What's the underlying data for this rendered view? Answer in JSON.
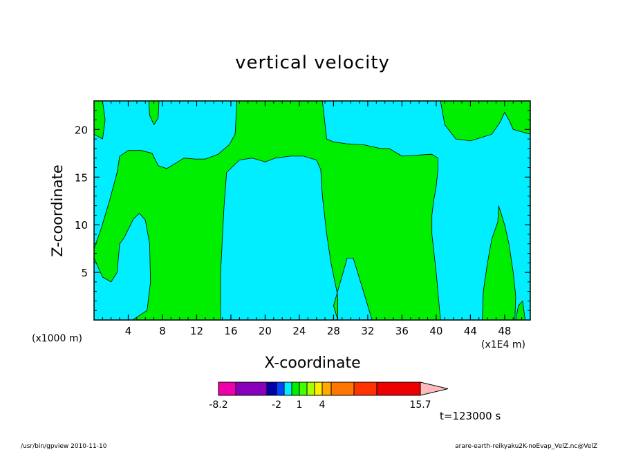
{
  "chart_data": {
    "type": "heatmap",
    "title": "vertical velocity",
    "xlabel": "X-coordinate",
    "ylabel": "Z-coordinate",
    "x_unit_left": "(x1000 m)",
    "x_unit_right": "(x1E4 m)",
    "xlim": [
      0,
      51
    ],
    "ylim": [
      0,
      23
    ],
    "x_ticks": [
      4,
      8,
      12,
      16,
      20,
      24,
      28,
      32,
      36,
      40,
      44,
      48
    ],
    "y_ticks": [
      5,
      10,
      15,
      20
    ],
    "background_color": "#00eeff",
    "region_color": "#00ee00",
    "regions": [
      {
        "points": [
          [
            0,
            7.5
          ],
          [
            0.8,
            9.5
          ],
          [
            1.8,
            12.5
          ],
          [
            2.7,
            15.5
          ],
          [
            3.0,
            17.2
          ],
          [
            4.0,
            17.8
          ],
          [
            5.5,
            17.8
          ],
          [
            6.8,
            17.5
          ],
          [
            7.5,
            16.2
          ],
          [
            8.5,
            15.9
          ],
          [
            9.8,
            16.6
          ],
          [
            10.5,
            17.0
          ],
          [
            11.8,
            16.9
          ],
          [
            13,
            16.9
          ],
          [
            14.5,
            17.4
          ],
          [
            15.8,
            18.4
          ],
          [
            16.5,
            19.5
          ],
          [
            16.7,
            23
          ],
          [
            26.7,
            23
          ],
          [
            27.2,
            19.0
          ],
          [
            28.0,
            18.7
          ],
          [
            29.5,
            18.5
          ],
          [
            31.5,
            18.4
          ],
          [
            33.5,
            18.0
          ],
          [
            34.5,
            18.0
          ],
          [
            36.0,
            17.2
          ],
          [
            37.5,
            17.3
          ],
          [
            39.5,
            17.4
          ],
          [
            40.2,
            17.0
          ],
          [
            40.2,
            15.8
          ],
          [
            40.0,
            14.0
          ],
          [
            39.7,
            12.5
          ],
          [
            39.5,
            11.0
          ],
          [
            39.5,
            9.0
          ],
          [
            40.0,
            5.0
          ],
          [
            40.3,
            2.0
          ],
          [
            40.5,
            0
          ],
          [
            32.5,
            0
          ],
          [
            31.5,
            3.0
          ],
          [
            30.3,
            6.5
          ],
          [
            29.6,
            6.5
          ],
          [
            28.8,
            4.0
          ],
          [
            28.0,
            1.5
          ],
          [
            28.5,
            0
          ],
          [
            28.5,
            2.5
          ],
          [
            27.7,
            6.0
          ],
          [
            27.2,
            9.0
          ],
          [
            26.7,
            13.0
          ],
          [
            26.5,
            15.8
          ],
          [
            26.0,
            16.8
          ],
          [
            24.5,
            17.2
          ],
          [
            23.0,
            17.2
          ],
          [
            21.2,
            17.0
          ],
          [
            20.0,
            16.6
          ],
          [
            18.5,
            17.0
          ],
          [
            17.0,
            16.8
          ],
          [
            15.5,
            15.5
          ],
          [
            15.2,
            12.0
          ],
          [
            14.8,
            5.0
          ],
          [
            14.8,
            0
          ],
          [
            4.5,
            0
          ],
          [
            6.2,
            1.0
          ],
          [
            6.6,
            4.0
          ],
          [
            6.5,
            8.0
          ],
          [
            6.0,
            10.5
          ],
          [
            5.3,
            11.2
          ],
          [
            4.6,
            10.6
          ],
          [
            4.0,
            9.5
          ],
          [
            3.5,
            8.6
          ],
          [
            3.0,
            8.0
          ],
          [
            2.7,
            5.0
          ],
          [
            2.0,
            4.0
          ],
          [
            1.0,
            4.5
          ],
          [
            0,
            6.5
          ]
        ]
      },
      {
        "points": [
          [
            0,
            23
          ],
          [
            0,
            19.5
          ],
          [
            1.0,
            19.0
          ],
          [
            1.3,
            21.0
          ],
          [
            1.0,
            23
          ]
        ]
      },
      {
        "points": [
          [
            6.4,
            23
          ],
          [
            6.5,
            21.5
          ],
          [
            7.0,
            20.5
          ],
          [
            7.5,
            21.2
          ],
          [
            7.6,
            23
          ]
        ]
      },
      {
        "points": [
          [
            40.5,
            23
          ],
          [
            41.0,
            20.5
          ],
          [
            42.3,
            19.0
          ],
          [
            44.0,
            18.8
          ],
          [
            46.5,
            19.5
          ],
          [
            47.5,
            20.8
          ],
          [
            48.0,
            21.8
          ],
          [
            48.5,
            21.0
          ],
          [
            49.0,
            20.0
          ],
          [
            51,
            19.5
          ],
          [
            51,
            23
          ]
        ]
      },
      {
        "points": [
          [
            45.4,
            0
          ],
          [
            45.5,
            3.0
          ],
          [
            46.0,
            6.0
          ],
          [
            46.5,
            8.5
          ],
          [
            47.2,
            10.3
          ],
          [
            47.3,
            12.0
          ],
          [
            48.0,
            10.0
          ],
          [
            48.5,
            8.0
          ],
          [
            49.0,
            5.0
          ],
          [
            49.3,
            2.5
          ],
          [
            49.2,
            0
          ]
        ]
      },
      {
        "points": [
          [
            49.3,
            0
          ],
          [
            49.6,
            1.5
          ],
          [
            50.1,
            2.0
          ],
          [
            50.4,
            0
          ]
        ]
      }
    ],
    "colorbar": {
      "colors": [
        "#ee00aa",
        "#8800bb",
        "#0000aa",
        "#0044ff",
        "#00eeff",
        "#00ee00",
        "#44ff00",
        "#aaff00",
        "#ffee00",
        "#ffaa00",
        "#ff7700",
        "#ff3300",
        "#ee0000",
        "#ff7777",
        "#ffbbbb"
      ],
      "labels": [
        "-8.2",
        "-2",
        "1",
        "4",
        "15.7"
      ]
    }
  },
  "annotations": {
    "time_label": "t=123000 s",
    "footer_left": "/usr/bin/gpview   2010-11-10",
    "footer_right": "arare-earth-reikyaku2K-noEvap_VelZ.nc@VelZ"
  }
}
